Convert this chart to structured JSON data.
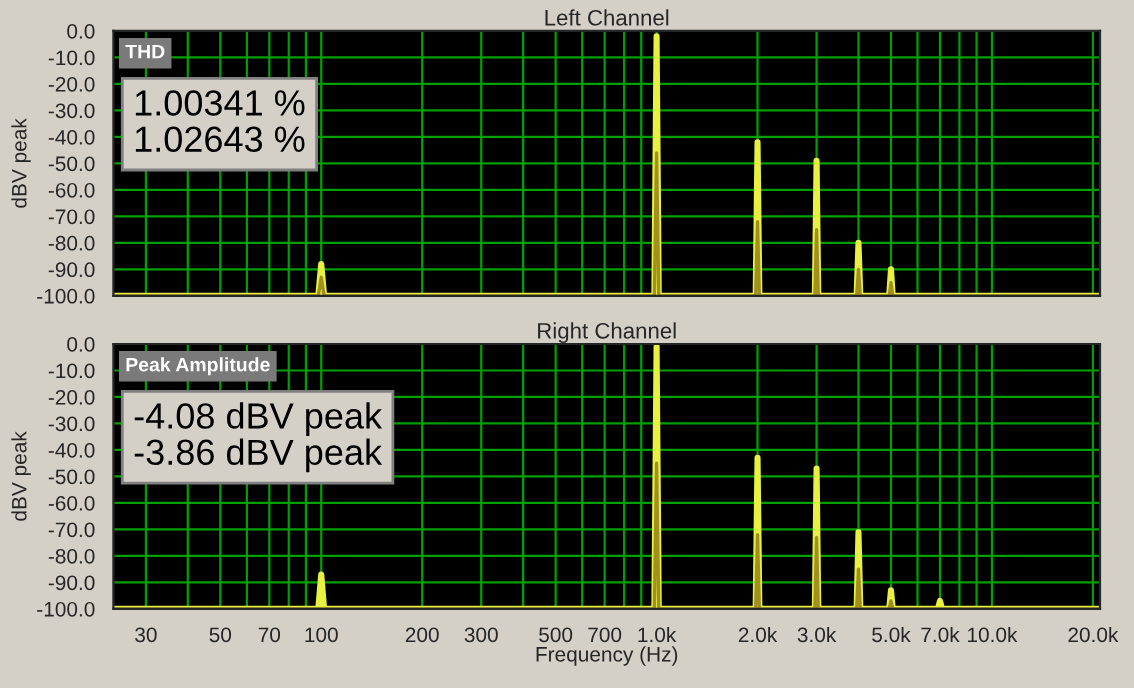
{
  "chart_data": [
    {
      "type": "line",
      "title": "Left Channel",
      "ylabel": "dBV peak",
      "tick_labels": "y",
      "grid": true,
      "marker": "none",
      "line_style": "solid",
      "xlim": [
        24,
        21000
      ],
      "ylim": [
        -100,
        0
      ],
      "log": "x",
      "xticks": [
        {
          "value": 30,
          "label": null
        },
        {
          "value": 40,
          "label": null
        },
        {
          "value": 50,
          "label": null
        },
        {
          "value": 60,
          "label": null
        },
        {
          "value": 70,
          "label": null
        },
        {
          "value": 80,
          "label": null
        },
        {
          "value": 90,
          "label": null
        },
        {
          "value": 100,
          "label": null
        },
        {
          "value": 200,
          "label": null
        },
        {
          "value": 300,
          "label": null
        },
        {
          "value": 400,
          "label": null
        },
        {
          "value": 500,
          "label": null
        },
        {
          "value": 600,
          "label": null
        },
        {
          "value": 700,
          "label": null
        },
        {
          "value": 800,
          "label": null
        },
        {
          "value": 900,
          "label": null
        },
        {
          "value": 1000,
          "label": null
        },
        {
          "value": 2000,
          "label": null
        },
        {
          "value": 3000,
          "label": null
        },
        {
          "value": 4000,
          "label": null
        },
        {
          "value": 5000,
          "label": null
        },
        {
          "value": 6000,
          "label": null
        },
        {
          "value": 7000,
          "label": null
        },
        {
          "value": 8000,
          "label": null
        },
        {
          "value": 9000,
          "label": null
        },
        {
          "value": 10000,
          "label": null
        },
        {
          "value": 20000,
          "label": null
        }
      ],
      "yticks": [
        {
          "value": 0,
          "label": "0.0"
        },
        {
          "value": -10,
          "label": "-10.0"
        },
        {
          "value": -20,
          "label": "-20.0"
        },
        {
          "value": -30,
          "label": "-30.0"
        },
        {
          "value": -40,
          "label": "-40.0"
        },
        {
          "value": -50,
          "label": "-50.0"
        },
        {
          "value": -60,
          "label": "-60.0"
        },
        {
          "value": -70,
          "label": "-70.0"
        },
        {
          "value": -80,
          "label": "-80.0"
        },
        {
          "value": -90,
          "label": "-90.0"
        },
        {
          "value": -100,
          "label": "-100.0"
        }
      ],
      "annotations": [
        "THD",
        "1.00341 %",
        "1.02643 %"
      ],
      "series": [
        {
          "color": "#e8f040",
          "x": [
            24,
            98,
            100,
            102,
            985,
            1000,
            1015,
            1975,
            2000,
            2025,
            2965,
            3000,
            3035,
            3950,
            4000,
            4050,
            4940,
            5000,
            5060,
            21000
          ],
          "values": [
            -100,
            -100,
            -88,
            -100,
            -100,
            -2,
            -100,
            -100,
            -42,
            -100,
            -100,
            -49,
            -100,
            -100,
            -80,
            -100,
            -100,
            -90,
            -100,
            -100
          ]
        },
        {
          "color": "#a09020",
          "x": [
            24,
            98,
            100,
            102,
            985,
            1000,
            1015,
            1975,
            2000,
            2025,
            2965,
            3000,
            3035,
            3950,
            4000,
            4050,
            4940,
            5000,
            5060,
            21000
          ],
          "values": [
            -100,
            -100,
            -93,
            -100,
            -100,
            -46,
            -100,
            -100,
            -72,
            -100,
            -100,
            -75,
            -100,
            -100,
            -90,
            -100,
            -100,
            -95,
            -100,
            -100
          ]
        }
      ]
    },
    {
      "type": "line",
      "title": "Right Channel",
      "ylabel": "dBV peak",
      "xlabel": "Frequency (Hz)",
      "grid": true,
      "marker": "none",
      "line_style": "solid",
      "xlim": [
        24,
        21000
      ],
      "ylim": [
        -100,
        0
      ],
      "log": "x",
      "xticks": [
        30,
        {
          "value": 40,
          "label": null
        },
        50,
        {
          "value": 60,
          "label": null
        },
        70,
        {
          "value": 80,
          "label": null
        },
        {
          "value": 90,
          "label": null
        },
        100,
        200,
        300,
        {
          "value": 400,
          "label": null
        },
        500,
        {
          "value": 600,
          "label": null
        },
        700,
        {
          "value": 800,
          "label": null
        },
        {
          "value": 900,
          "label": null
        },
        {
          "value": 1000,
          "label": "1.0k"
        },
        {
          "value": 2000,
          "label": "2.0k"
        },
        {
          "value": 3000,
          "label": "3.0k"
        },
        {
          "value": 4000,
          "label": null
        },
        {
          "value": 5000,
          "label": "5.0k"
        },
        {
          "value": 6000,
          "label": null
        },
        {
          "value": 7000,
          "label": "7.0k"
        },
        {
          "value": 8000,
          "label": null
        },
        {
          "value": 9000,
          "label": null
        },
        {
          "value": 10000,
          "label": "10.0k"
        },
        {
          "value": 20000,
          "label": "20.0k"
        }
      ],
      "yticks": [
        {
          "value": 0,
          "label": "0.0"
        },
        {
          "value": -10,
          "label": "-10.0"
        },
        {
          "value": -20,
          "label": "-20.0"
        },
        {
          "value": -30,
          "label": "-30.0"
        },
        {
          "value": -40,
          "label": "-40.0"
        },
        {
          "value": -50,
          "label": "-50.0"
        },
        {
          "value": -60,
          "label": "-60.0"
        },
        {
          "value": -70,
          "label": "-70.0"
        },
        {
          "value": -80,
          "label": "-80.0"
        },
        {
          "value": -90,
          "label": "-90.0"
        },
        {
          "value": -100,
          "label": "-100.0"
        }
      ],
      "annotations": [
        "Peak Amplitude",
        "-4.08 dBV peak",
        "-3.86 dBV peak"
      ],
      "series": [
        {
          "color": "#e8f040",
          "x": [
            24,
            98,
            100,
            102,
            985,
            1000,
            1015,
            1975,
            2000,
            2025,
            2965,
            3000,
            3035,
            3950,
            4000,
            4050,
            4940,
            5000,
            5060,
            6900,
            7000,
            7100,
            21000
          ],
          "values": [
            -100,
            -100,
            -87,
            -100,
            -100,
            -1,
            -100,
            -100,
            -43,
            -100,
            -100,
            -47,
            -100,
            -100,
            -71,
            -100,
            -100,
            -93,
            -100,
            -100,
            -97,
            -100,
            -100
          ]
        },
        {
          "color": "#a09020",
          "x": [
            24,
            985,
            1000,
            1015,
            1975,
            2000,
            2025,
            2965,
            3000,
            3035,
            3950,
            4000,
            4050,
            4940,
            5000,
            5060,
            21000
          ],
          "values": [
            -100,
            -100,
            -45,
            -100,
            -100,
            -72,
            -100,
            -100,
            -73,
            -100,
            -100,
            -85,
            -100,
            -100,
            -97,
            -100,
            -100
          ]
        }
      ]
    }
  ]
}
